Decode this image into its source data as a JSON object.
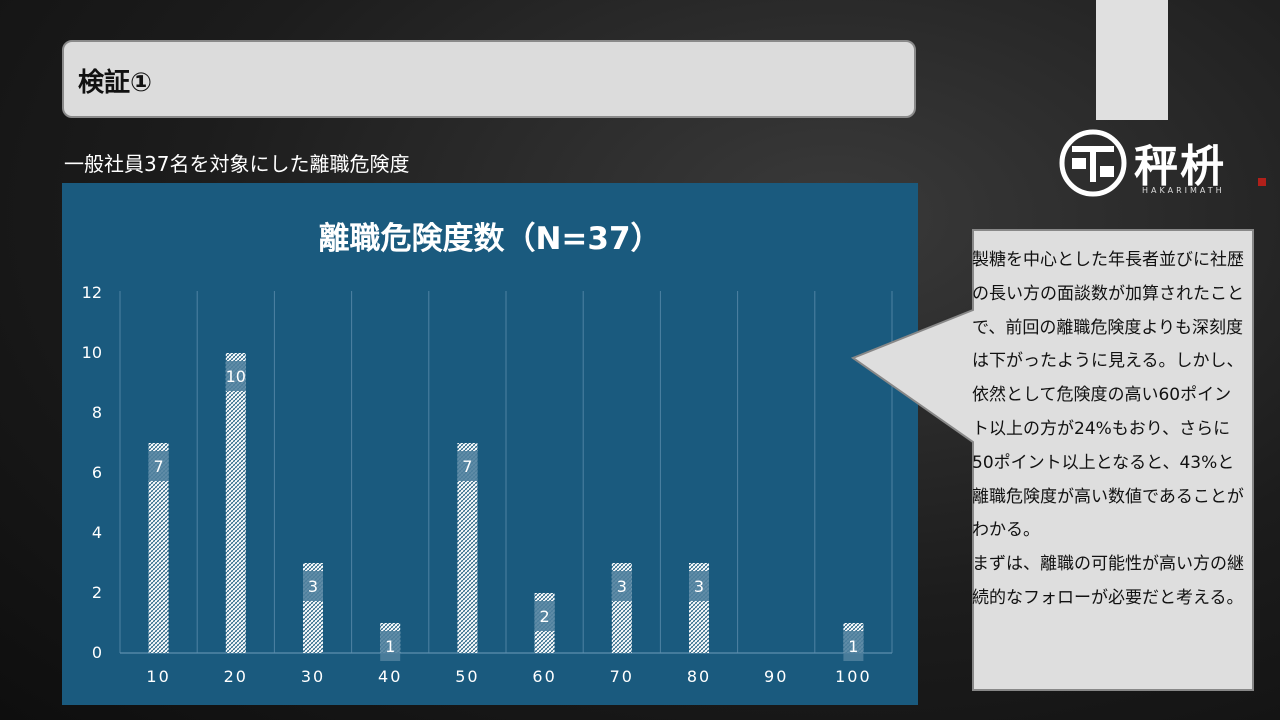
{
  "header": {
    "title": "検証①"
  },
  "subtitle": "一般社員37名を対象にした離職危険度",
  "logo": {
    "chars": "秤枡",
    "sub": "HAKARIMATH"
  },
  "callout": {
    "paragraph1": "製糖を中心とした年長者並びに社歴の長い方の面談数が加算されたことで、前回の離職危険度よりも深刻度は下がったように見える。しかし、依然として危険度の高い60ポイント以上の方が24%もおり、さらに50ポイント以上となると、43%と離職危険度が高い数値であることがわかる。",
    "paragraph2": "まずは、離職の可能性が高い方の継続的なフォローが必要だと考える。"
  },
  "chart_data": {
    "type": "bar",
    "title": "離職危険度数（N=37）",
    "categories": [
      "10",
      "20",
      "30",
      "40",
      "50",
      "60",
      "70",
      "80",
      "90",
      "100"
    ],
    "values": [
      7,
      10,
      3,
      1,
      7,
      2,
      3,
      3,
      0,
      1
    ],
    "data_labels": [
      "7",
      "10",
      "3",
      "1",
      "7",
      "2",
      "3",
      "3",
      "",
      "1"
    ],
    "yticks": [
      "0",
      "2",
      "4",
      "6",
      "8",
      "10",
      "12"
    ],
    "ylim": [
      0,
      12
    ],
    "grid": "vertical",
    "colors": {
      "panel": "#1a5a7e",
      "bar_pattern": "#ffffff",
      "label_band": "#4f7f9d"
    }
  }
}
